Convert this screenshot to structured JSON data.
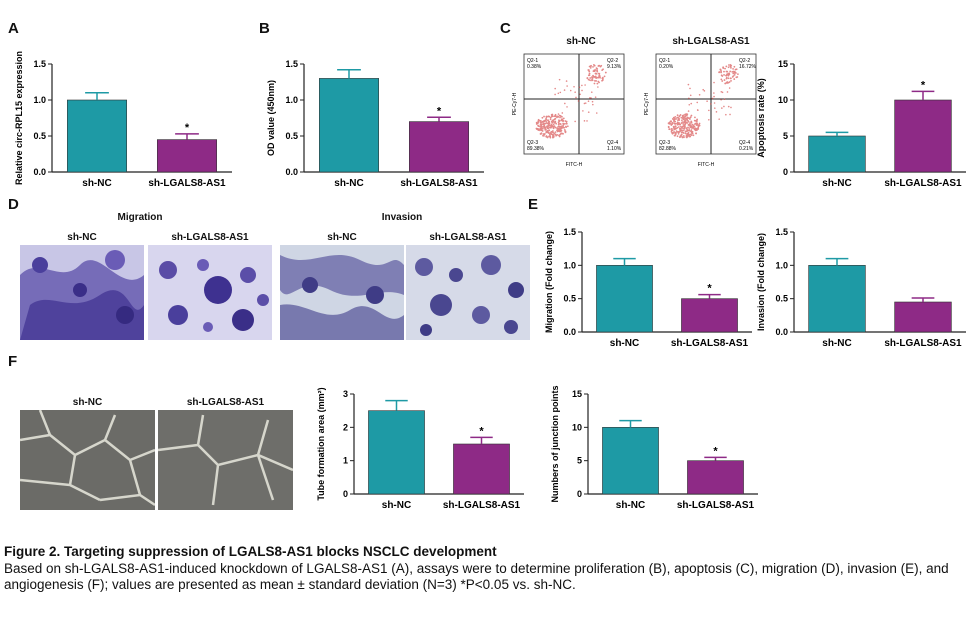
{
  "panels": {
    "A": "A",
    "B": "B",
    "C": "C",
    "D": "D",
    "E": "E",
    "F": "F"
  },
  "colors": {
    "teal": "#1e9aa5",
    "magenta": "#8e2a86",
    "scatter": "#d23b3b"
  },
  "image_titles": {
    "migration": "Migration",
    "invasion": "Invasion",
    "d_sh_nc_1": "sh-NC",
    "d_sh_lgals_1": "sh-LGALS8-AS1",
    "d_sh_nc_2": "sh-NC",
    "d_sh_lgals_2": "sh-LGALS8-AS1",
    "f_sh_nc": "sh-NC",
    "f_sh_lgals": "sh-LGALS8-AS1",
    "c_sh_nc": "sh-NC",
    "c_sh_lgals": "sh-LGALS8-AS1"
  },
  "flow": [
    {
      "title": "sh-NC",
      "q1": "Q2-1\n0.38%",
      "q2": "Q2-2\n9.13%",
      "q3": "Q2-3\n89.38%",
      "q4": "Q2-4\n1.10%",
      "xlabel": "FITC-H",
      "ylabel": "PE-Cy7-H"
    },
    {
      "title": "sh-LGALS8-AS1",
      "q1": "Q2-1\n0.20%",
      "q2": "Q2-2\n16.72%",
      "q3": "Q2-3\n82.88%",
      "q4": "Q2-4\n0.21%",
      "xlabel": "FITC-H",
      "ylabel": "PE-Cy7-H"
    }
  ],
  "chart_data": [
    {
      "id": "A",
      "type": "bar",
      "categories": [
        "sh-NC",
        "sh-LGALS8-AS1"
      ],
      "values": [
        1.0,
        0.45
      ],
      "errors": [
        0.1,
        0.08
      ],
      "ylabel": "Relative circ-RPL15 expression",
      "ylim": [
        0,
        1.5
      ],
      "yticks": [
        "0.0",
        "0.5",
        "1.0",
        "1.5"
      ],
      "significance": [
        "",
        "*"
      ]
    },
    {
      "id": "B",
      "type": "bar",
      "categories": [
        "sh-NC",
        "sh-LGALS8-AS1"
      ],
      "values": [
        1.3,
        0.7
      ],
      "errors": [
        0.12,
        0.06
      ],
      "ylabel": "OD value (450nm)",
      "ylim": [
        0,
        1.5
      ],
      "yticks": [
        "0.0",
        "0.5",
        "1.0",
        "1.5"
      ],
      "significance": [
        "",
        "*"
      ]
    },
    {
      "id": "C",
      "type": "bar",
      "categories": [
        "sh-NC",
        "sh-LGALS8-AS1"
      ],
      "values": [
        5,
        10
      ],
      "errors": [
        0.5,
        1.2
      ],
      "ylabel": "Apoptosis rate (%)",
      "ylim": [
        0,
        15
      ],
      "yticks": [
        "0",
        "5",
        "10",
        "15"
      ],
      "significance": [
        "",
        "*"
      ]
    },
    {
      "id": "E1",
      "type": "bar",
      "categories": [
        "sh-NC",
        "sh-LGALS8-AS1"
      ],
      "values": [
        1.0,
        0.5
      ],
      "errors": [
        0.1,
        0.06
      ],
      "ylabel": "Migration (Fold change)",
      "ylim": [
        0,
        1.5
      ],
      "yticks": [
        "0.0",
        "0.5",
        "1.0",
        "1.5"
      ],
      "significance": [
        "",
        "*"
      ]
    },
    {
      "id": "E2",
      "type": "bar",
      "categories": [
        "sh-NC",
        "sh-LGALS8-AS1"
      ],
      "values": [
        1.0,
        0.45
      ],
      "errors": [
        0.1,
        0.06
      ],
      "ylabel": "Invasion (Fold change)",
      "ylim": [
        0,
        1.5
      ],
      "yticks": [
        "0.0",
        "0.5",
        "1.0",
        "1.5"
      ],
      "significance": [
        "",
        ""
      ]
    },
    {
      "id": "F1",
      "type": "bar",
      "categories": [
        "sh-NC",
        "sh-LGALS8-AS1"
      ],
      "values": [
        2.5,
        1.5
      ],
      "errors": [
        0.3,
        0.2
      ],
      "ylabel": "Tube formation area (mm²)",
      "ylim": [
        0,
        3
      ],
      "yticks": [
        "0",
        "1",
        "2",
        "3"
      ],
      "significance": [
        "",
        "*"
      ]
    },
    {
      "id": "F2",
      "type": "bar",
      "categories": [
        "sh-NC",
        "sh-LGALS8-AS1"
      ],
      "values": [
        10,
        5
      ],
      "errors": [
        1,
        0.5
      ],
      "ylabel": "Numbers of junction points",
      "ylim": [
        0,
        15
      ],
      "yticks": [
        "0",
        "5",
        "10",
        "15"
      ],
      "significance": [
        "",
        "*"
      ]
    }
  ],
  "caption": {
    "title": "Figure 2. Targeting suppression of LGALS8-AS1 blocks NSCLC development",
    "body": "Based on sh-LGALS8-AS1-induced knockdown of LGALS8-AS1 (A), assays were to determine proliferation (B), apoptosis (C), migration (D), invasion (E), and angiogenesis (F); values are presented as mean ± standard deviation (N=3) *P<0.05 vs. sh-NC."
  }
}
